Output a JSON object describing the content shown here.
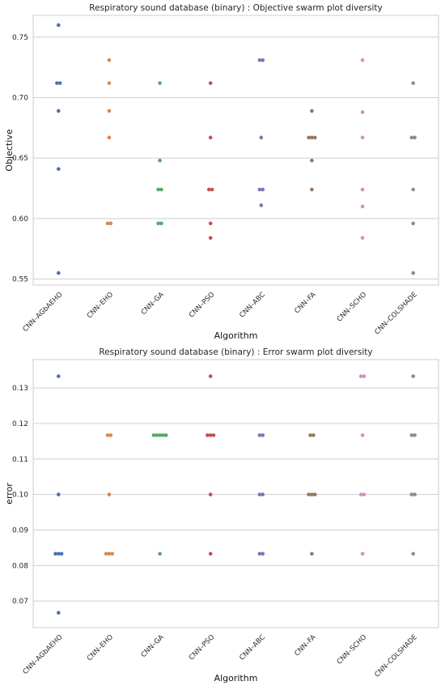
{
  "chart_data": [
    {
      "type": "scatter",
      "style": "swarm",
      "title": "Respiratory sound database (binary) : Objective swarm plot diversity",
      "xlabel": "Algorithm",
      "ylabel": "Objective",
      "ylim": [
        0.545,
        0.768
      ],
      "yticks": [
        0.55,
        0.6,
        0.65,
        0.7,
        0.75
      ],
      "tick_decimals": 2,
      "grid": true,
      "categories": [
        "CNN–AGbAEHO",
        "CNN–EHO",
        "CNN–GA",
        "CNN–PSO",
        "CNN–ABC",
        "CNN–FA",
        "CNN–SCHO",
        "CNN–COLSHADE"
      ],
      "colors": [
        "#4c72b0",
        "#dd8452",
        "#55a868",
        "#c44e52",
        "#8172b3",
        "#937860",
        "#da8bc3",
        "#8c8c8c"
      ],
      "values": [
        [
          0.76,
          0.712,
          0.712,
          0.689,
          0.641,
          0.555
        ],
        [
          0.731,
          0.712,
          0.689,
          0.667,
          0.596,
          0.596
        ],
        [
          0.712,
          0.648,
          0.624,
          0.624,
          0.596,
          0.596
        ],
        [
          0.712,
          0.667,
          0.624,
          0.624,
          0.596,
          0.584
        ],
        [
          0.731,
          0.731,
          0.667,
          0.624,
          0.624,
          0.611
        ],
        [
          0.689,
          0.667,
          0.667,
          0.667,
          0.648,
          0.624
        ],
        [
          0.731,
          0.688,
          0.667,
          0.624,
          0.61,
          0.584
        ],
        [
          0.712,
          0.667,
          0.667,
          0.624,
          0.596,
          0.555
        ]
      ]
    },
    {
      "type": "scatter",
      "style": "swarm",
      "title": "Respiratory sound database (binary) : Error swarm plot diversity",
      "xlabel": "Algorithm",
      "ylabel": "error",
      "ylim": [
        0.0625,
        0.138
      ],
      "yticks": [
        0.07,
        0.08,
        0.09,
        0.1,
        0.11,
        0.12,
        0.13
      ],
      "tick_decimals": 2,
      "grid": true,
      "categories": [
        "CNN–AGbAEHO",
        "CNN–EHO",
        "CNN–GA",
        "CNN–PSO",
        "CNN–ABC",
        "CNN–FA",
        "CNN–SCHO",
        "CNN–COLSHADE"
      ],
      "colors": [
        "#4c72b0",
        "#dd8452",
        "#55a868",
        "#c44e52",
        "#8172b3",
        "#937860",
        "#da8bc3",
        "#8c8c8c"
      ],
      "values": [
        [
          0.1333,
          0.1,
          0.0833,
          0.0833,
          0.0833,
          0.0667
        ],
        [
          0.1167,
          0.1167,
          0.1,
          0.0833,
          0.0833,
          0.0833
        ],
        [
          0.1167,
          0.1167,
          0.1167,
          0.1167,
          0.1167,
          0.0833
        ],
        [
          0.1333,
          0.1167,
          0.1167,
          0.1167,
          0.1,
          0.0833
        ],
        [
          0.1167,
          0.1167,
          0.1,
          0.1,
          0.0833,
          0.0833
        ],
        [
          0.1167,
          0.1167,
          0.1,
          0.1,
          0.1,
          0.0833
        ],
        [
          0.1333,
          0.1333,
          0.1167,
          0.1,
          0.1,
          0.0833
        ],
        [
          0.1333,
          0.1167,
          0.1167,
          0.1,
          0.1,
          0.0833
        ]
      ]
    }
  ]
}
